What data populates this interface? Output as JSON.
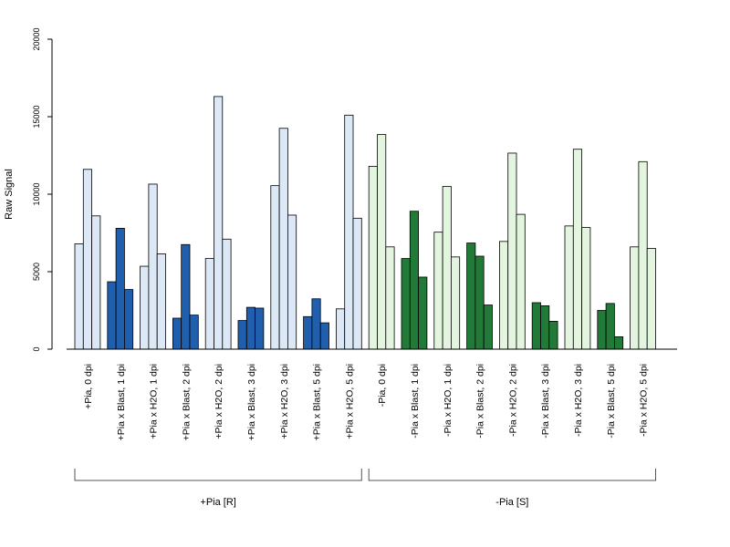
{
  "chart_data": {
    "type": "bar",
    "ylabel": "Raw Signal",
    "ylim": [
      0,
      20000
    ],
    "yticks": [
      0,
      5000,
      10000,
      15000,
      20000
    ],
    "grid": false,
    "categories": [
      "+Pia, 0 dpi",
      "+Pia x Blast, 1 dpi",
      "+Pia x H2O, 1 dpi",
      "+Pia x Blast, 2 dpi",
      "+Pia x H2O, 2 dpi",
      "+Pia x Blast, 3 dpi",
      "+Pia x H2O, 3 dpi",
      "+Pia x Blast, 5 dpi",
      "+Pia x H2O, 5 dpi",
      "-Pia, 0 dpi",
      "-Pia x Blast, 1 dpi",
      "-Pia x H2O, 1 dpi",
      "-Pia x Blast, 2 dpi",
      "-Pia x H2O, 2 dpi",
      "-Pia x Blast, 3 dpi",
      "-Pia x H2O, 3 dpi",
      "-Pia x Blast, 5 dpi",
      "-Pia x H2O, 5 dpi"
    ],
    "replicates": [
      [
        6800,
        11600,
        8600
      ],
      [
        4350,
        7800,
        3850
      ],
      [
        5350,
        10650,
        6150
      ],
      [
        2000,
        6750,
        2200
      ],
      [
        5850,
        16300,
        7100
      ],
      [
        1850,
        2700,
        2650
      ],
      [
        10550,
        14250,
        8650
      ],
      [
        2100,
        3250,
        1700
      ],
      [
        2600,
        15100,
        8450
      ],
      [
        11800,
        13850,
        6600
      ],
      [
        5850,
        8900,
        4650
      ],
      [
        7550,
        10500,
        5950
      ],
      [
        6850,
        6000,
        2850
      ],
      [
        6950,
        12650,
        8700
      ],
      [
        3000,
        2800,
        1800
      ],
      [
        7950,
        12900,
        7850
      ],
      [
        2500,
        2950,
        800
      ],
      [
        6600,
        12100,
        6500
      ]
    ],
    "bar_colors": [
      "#dce8f6",
      "#1f5fae",
      "#dce8f6",
      "#1f5fae",
      "#dce8f6",
      "#1f5fae",
      "#dce8f6",
      "#1f5fae",
      "#dce8f6",
      "#e4f5df",
      "#217a38",
      "#e4f5df",
      "#217a38",
      "#e4f5df",
      "#217a38",
      "#e4f5df",
      "#217a38",
      "#e4f5df"
    ],
    "groups": [
      {
        "label": "+Pia [R]",
        "from": 0,
        "to": 8
      },
      {
        "label": "-Pia [S]",
        "from": 9,
        "to": 17
      }
    ]
  }
}
